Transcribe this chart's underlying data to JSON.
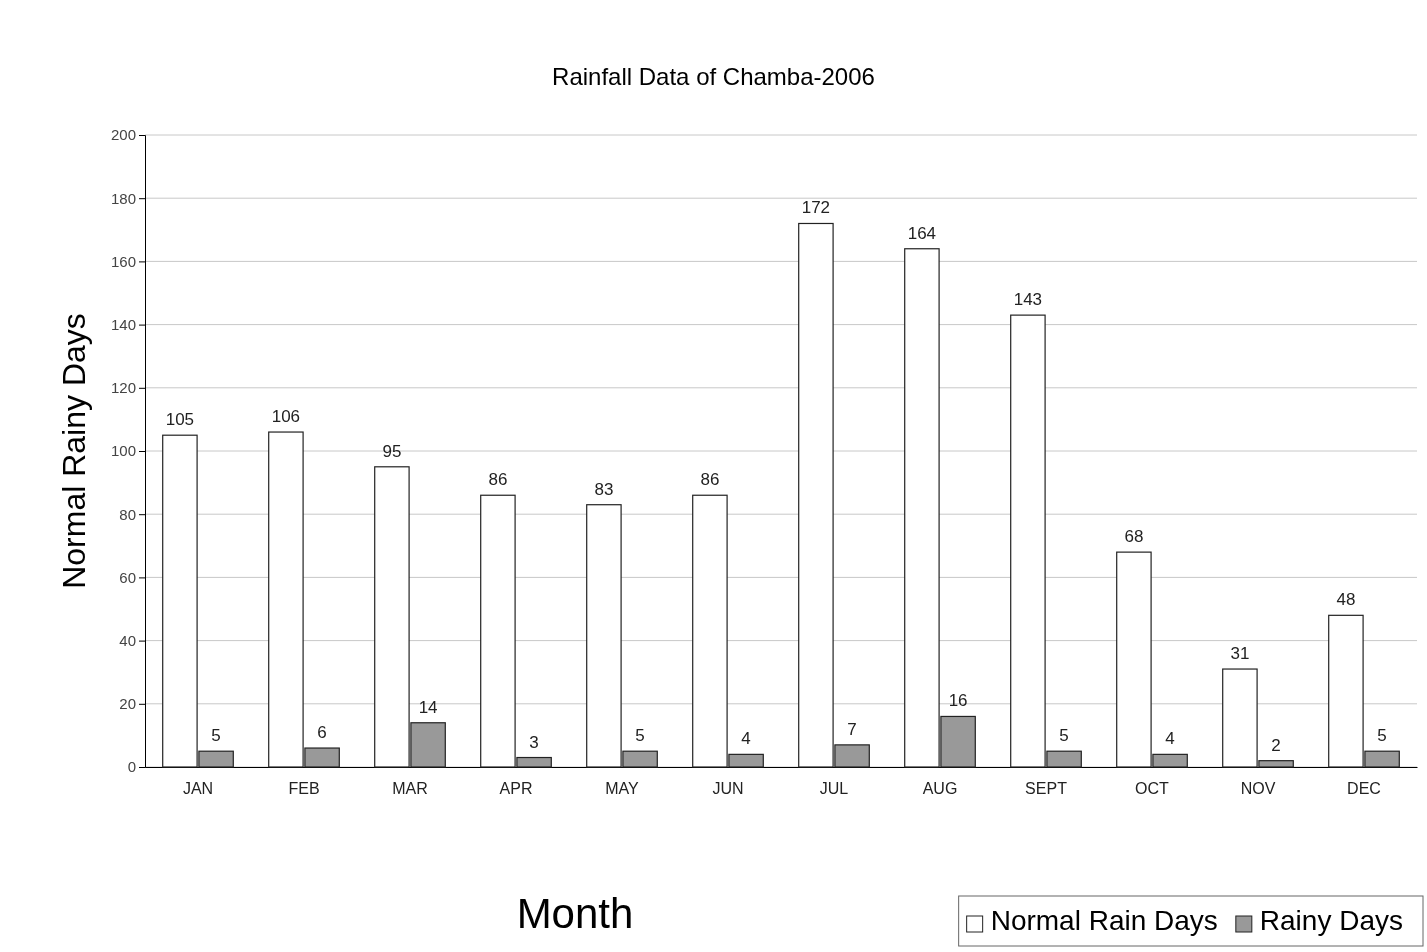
{
  "chart_data": {
    "type": "bar",
    "title": "Rainfall Data of Chamba-2006",
    "xlabel": "Month",
    "ylabel": "Normal Rainy Days",
    "categories": [
      "JAN",
      "FEB",
      "MAR",
      "APR",
      "MAY",
      "JUN",
      "JUL",
      "AUG",
      "SEPT",
      "OCT",
      "NOV",
      "DEC"
    ],
    "series": [
      {
        "name": "Normal Rain Days",
        "color": "#ffffff",
        "values": [
          105,
          106,
          95,
          86,
          83,
          86,
          172,
          164,
          143,
          68,
          31,
          48
        ]
      },
      {
        "name": "Rainy Days",
        "color": "#999999",
        "values": [
          5,
          6,
          14,
          3,
          5,
          4,
          7,
          16,
          5,
          4,
          2,
          5
        ]
      }
    ],
    "ylim": [
      0,
      200
    ],
    "yticks": [
      0,
      20,
      40,
      60,
      80,
      100,
      120,
      140,
      160,
      180,
      200
    ],
    "grid": "y",
    "legend": "bottom right",
    "data_labels": true
  }
}
